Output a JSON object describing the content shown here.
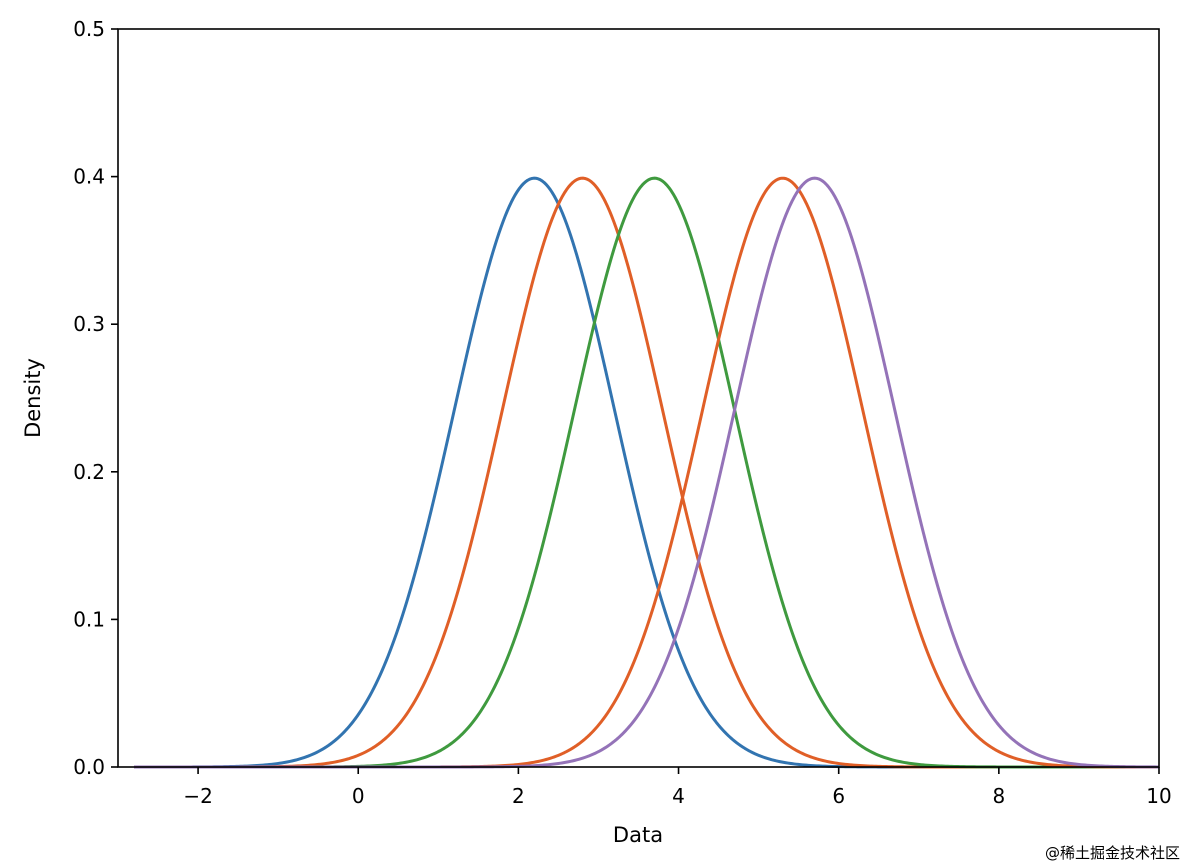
{
  "chart_data": {
    "type": "line",
    "title": "",
    "xlabel": "Data",
    "ylabel": "Density",
    "xlim": [
      -3,
      10
    ],
    "ylim": [
      0,
      0.5
    ],
    "x_ticks": [
      -2,
      0,
      2,
      4,
      6,
      8,
      10
    ],
    "x_tick_labels": [
      "−2",
      "0",
      "2",
      "4",
      "6",
      "8",
      "10"
    ],
    "y_ticks": [
      0,
      0.1,
      0.2,
      0.3,
      0.4,
      0.5
    ],
    "y_tick_labels": [
      "0.0",
      "0.1",
      "0.2",
      "0.3",
      "0.4",
      "0.5"
    ],
    "grid": false,
    "legend": "none",
    "x_range": [
      -2.8,
      10
    ],
    "series": [
      {
        "distribution": "normal",
        "mean": 2.2,
        "std": 1.0,
        "color": "#3274b0"
      },
      {
        "distribution": "normal",
        "mean": 2.8,
        "std": 1.0,
        "color": "#e05f27"
      },
      {
        "distribution": "normal",
        "mean": 3.7,
        "std": 1.0,
        "color": "#3f9a3f"
      },
      {
        "distribution": "normal",
        "mean": 5.3,
        "std": 1.0,
        "color": "#e05f27"
      },
      {
        "distribution": "normal",
        "mean": 5.7,
        "std": 1.0,
        "color": "#9473b8"
      }
    ]
  },
  "watermark": "@稀土掘金技术社区"
}
